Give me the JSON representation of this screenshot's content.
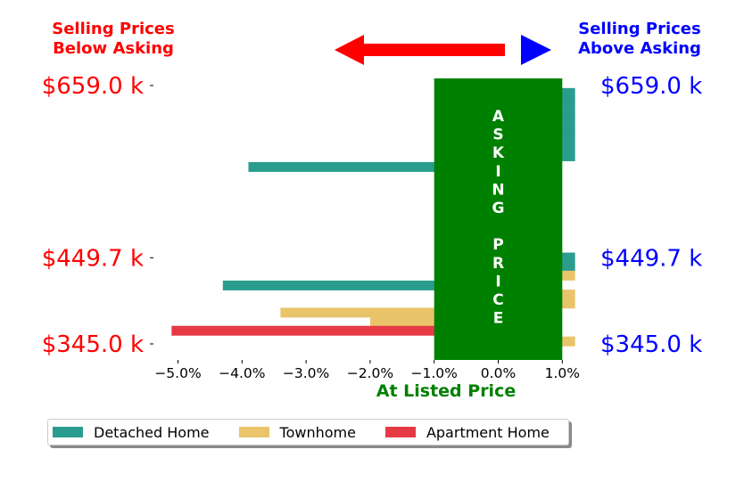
{
  "header": {
    "left_line1": "Selling Prices",
    "left_line2": "Below Asking",
    "right_line1": "Selling Prices",
    "right_line2": "Above Asking",
    "left_color": "#ff0000",
    "right_color": "#0000ff",
    "arrow_color": "#ff0000",
    "triangle_color": "#0000ff"
  },
  "chart_data": {
    "type": "bar",
    "orientation": "horizontal",
    "xlabel": "At Listed Price",
    "xlabel_color": "#008000",
    "x_ticks": [
      "−5.0%",
      "−4.0%",
      "−3.0%",
      "−2.0%",
      "−1.0%",
      "0.0%",
      "1.0%"
    ],
    "x_tick_values": [
      -5,
      -4,
      -3,
      -2,
      -1,
      0,
      1
    ],
    "xlim": [
      -5.4,
      1.3
    ],
    "ylim": [
      332,
      667
    ],
    "y_ticks_left": [
      "$659.0 k",
      "$449.7 k",
      "$345.0 k"
    ],
    "y_ticks_right": [
      "$659.0 k",
      "$449.7 k",
      "$345.0 k"
    ],
    "y_tick_values": [
      659.0,
      449.7,
      345.0
    ],
    "left_tick_color": "#ff0000",
    "right_tick_color": "#0000ff",
    "asking_band": {
      "x_range": [
        -1.0,
        1.0
      ],
      "color": "#008000",
      "label_letters": [
        "A",
        "S",
        "K",
        "I",
        "N",
        "G",
        "",
        "P",
        "R",
        "I",
        "C",
        "E"
      ],
      "label_color": "#ffffff"
    },
    "series": [
      {
        "name": "Detached Home",
        "color": "#2a9d8f",
        "points": [
          {
            "price": 650,
            "pct": 1.2
          },
          {
            "price": 639,
            "pct": 1.2
          },
          {
            "price": 628,
            "pct": 1.2
          },
          {
            "price": 617,
            "pct": 1.2
          },
          {
            "price": 606,
            "pct": 1.2
          },
          {
            "price": 595,
            "pct": 1.2
          },
          {
            "price": 584,
            "pct": 1.2
          },
          {
            "price": 573,
            "pct": 1.2
          },
          {
            "price": 560,
            "pct": -3.9
          },
          {
            "price": 450,
            "pct": 1.2
          },
          {
            "price": 439,
            "pct": 1.2
          },
          {
            "price": 416,
            "pct": -4.3
          }
        ]
      },
      {
        "name": "Townhome",
        "color": "#e9c46a",
        "points": [
          {
            "price": 428,
            "pct": 1.2
          },
          {
            "price": 405,
            "pct": 1.2
          },
          {
            "price": 394,
            "pct": 1.2
          },
          {
            "price": 383,
            "pct": -3.4
          },
          {
            "price": 372,
            "pct": -2.0
          },
          {
            "price": 348,
            "pct": 1.2
          }
        ]
      },
      {
        "name": "Apartment Home",
        "color": "#e63946",
        "points": [
          {
            "price": 361,
            "pct": -5.1
          }
        ]
      }
    ],
    "legend_position": "bottom-left"
  }
}
